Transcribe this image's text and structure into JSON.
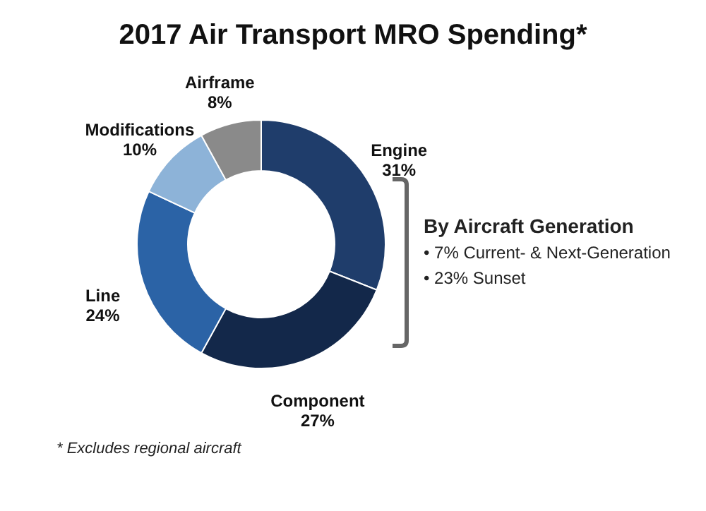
{
  "chart_data": {
    "type": "donut",
    "title": "2017 Air Transport MRO Spending*",
    "categories": [
      "Engine",
      "Component",
      "Line",
      "Modifications",
      "Airframe"
    ],
    "values": [
      31,
      27,
      24,
      10,
      8
    ],
    "colors": [
      "#1f3d6b",
      "#13284a",
      "#2b63a6",
      "#8db3d8",
      "#8a8a8a"
    ],
    "value_labels": [
      "31%",
      "27%",
      "24%",
      "10%",
      "8%"
    ],
    "annotations": [
      "By Aircraft Generation",
      "• 7% Current- & Next-Generation",
      "• 23% Sunset",
      "* Excludes regional aircraft"
    ]
  }
}
